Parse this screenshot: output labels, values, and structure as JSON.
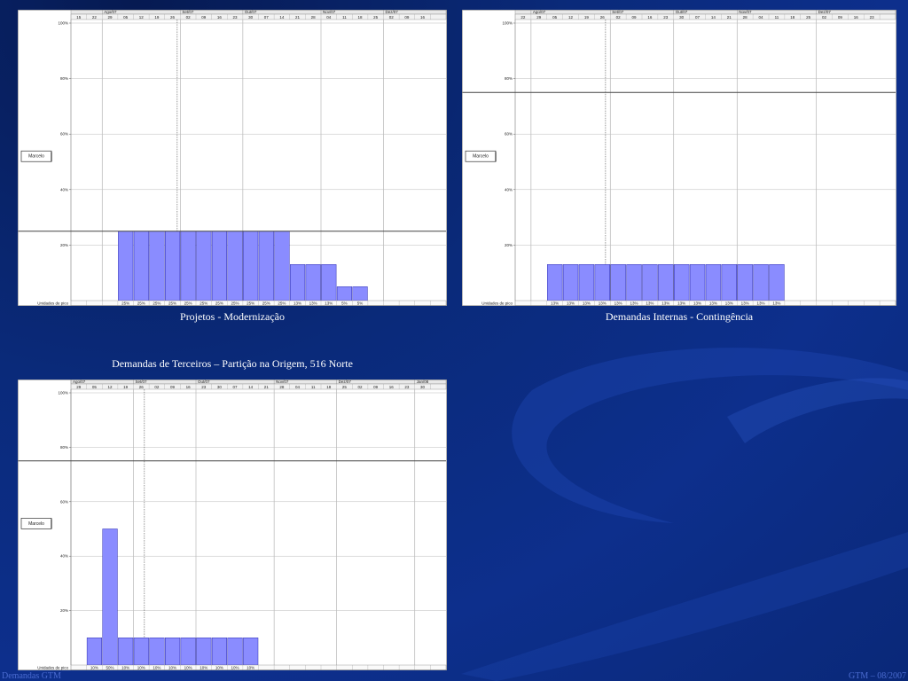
{
  "slide": {
    "footer_left": "Demandas GTM",
    "footer_right": "GTM – 08/2007"
  },
  "colors": {
    "bar_fill": "#8a8cff",
    "bar_stroke": "#2a2ab0",
    "background": "#0d2f8c"
  },
  "chart_data": [
    {
      "type": "bar",
      "title": "Projetos - Modernização",
      "resource_label": "Marcelo",
      "row_label": "Unidades de pico",
      "y_ticks": [
        "100%",
        "80%",
        "60%",
        "40%",
        "20%"
      ],
      "ylim": [
        0,
        100
      ],
      "max_line": 25,
      "months": [
        {
          "label": "Ago/07",
          "col": 2
        },
        {
          "label": "Set/07",
          "col": 7
        },
        {
          "label": "Out/07",
          "col": 11
        },
        {
          "label": "Nov/07",
          "col": 16
        },
        {
          "label": "Dez/07",
          "col": 20
        }
      ],
      "weeks": [
        "15",
        "22",
        "29",
        "05",
        "12",
        "19",
        "26",
        "02",
        "09",
        "16",
        "23",
        "30",
        "07",
        "14",
        "21",
        "28",
        "04",
        "11",
        "18",
        "25",
        "02",
        "09",
        "16",
        ""
      ],
      "values": [
        null,
        null,
        null,
        25,
        25,
        25,
        25,
        25,
        25,
        25,
        25,
        25,
        25,
        25,
        13,
        13,
        13,
        5,
        5,
        null,
        null,
        null,
        null,
        null
      ],
      "value_labels": [
        "",
        "",
        "",
        "25%",
        "25%",
        "25%",
        "25%",
        "25%",
        "25%",
        "25%",
        "25%",
        "25%",
        "25%",
        "25%",
        "13%",
        "13%",
        "13%",
        "5%",
        "5%",
        "",
        "",
        "",
        "",
        ""
      ],
      "today_col": 6.8
    },
    {
      "type": "bar",
      "title": "Demandas Internas - Contingência",
      "resource_label": "Marcelo",
      "row_label": "Unidades de pico",
      "y_ticks": [
        "100%",
        "80%",
        "60%",
        "40%",
        "20%"
      ],
      "ylim": [
        0,
        100
      ],
      "max_line": 75,
      "months": [
        {
          "label": "Ago/07",
          "col": 1
        },
        {
          "label": "Set/07",
          "col": 6
        },
        {
          "label": "Out/07",
          "col": 10
        },
        {
          "label": "Nov/07",
          "col": 14
        },
        {
          "label": "Dez/07",
          "col": 19
        }
      ],
      "weeks": [
        "22",
        "29",
        "05",
        "12",
        "19",
        "26",
        "02",
        "09",
        "16",
        "23",
        "30",
        "07",
        "14",
        "21",
        "28",
        "04",
        "11",
        "18",
        "25",
        "02",
        "09",
        "16",
        "23",
        ""
      ],
      "values": [
        null,
        null,
        13,
        13,
        13,
        13,
        13,
        13,
        13,
        13,
        13,
        13,
        13,
        13,
        13,
        13,
        13,
        null,
        null,
        null,
        null,
        null,
        null,
        null
      ],
      "value_labels": [
        "",
        "",
        "13%",
        "13%",
        "13%",
        "13%",
        "13%",
        "13%",
        "13%",
        "13%",
        "13%",
        "13%",
        "13%",
        "13%",
        "13%",
        "13%",
        "13%",
        "",
        "",
        "",
        "",
        "",
        "",
        ""
      ],
      "today_col": 5.7
    },
    {
      "type": "bar",
      "title": "Demandas de Terceiros – Partição na Origem, 516 Norte",
      "resource_label": "Marcelo",
      "row_label": "Unidades de pico",
      "y_ticks": [
        "100%",
        "80%",
        "60%",
        "40%",
        "20%"
      ],
      "ylim": [
        0,
        100
      ],
      "max_line": 75,
      "months": [
        {
          "label": "Ago/07",
          "col": 0
        },
        {
          "label": "Set/07",
          "col": 4
        },
        {
          "label": "Out/07",
          "col": 8
        },
        {
          "label": "Nov/07",
          "col": 13
        },
        {
          "label": "Dez/07",
          "col": 17
        },
        {
          "label": "Jan/08",
          "col": 22
        }
      ],
      "weeks": [
        "29",
        "05",
        "12",
        "19",
        "26",
        "02",
        "09",
        "16",
        "23",
        "30",
        "07",
        "14",
        "21",
        "28",
        "04",
        "11",
        "18",
        "25",
        "02",
        "09",
        "16",
        "23",
        "30",
        ""
      ],
      "values": [
        null,
        10,
        50,
        10,
        10,
        10,
        10,
        10,
        10,
        10,
        10,
        10,
        null,
        null,
        null,
        null,
        null,
        null,
        null,
        null,
        null,
        null,
        null,
        null
      ],
      "value_labels": [
        "",
        "10%",
        "50%",
        "10%",
        "10%",
        "10%",
        "10%",
        "10%",
        "10%",
        "10%",
        "10%",
        "10%",
        "",
        "",
        "",
        "",
        "",
        "",
        "",
        "",
        "",
        "",
        "",
        ""
      ],
      "today_col": 4.7
    }
  ]
}
